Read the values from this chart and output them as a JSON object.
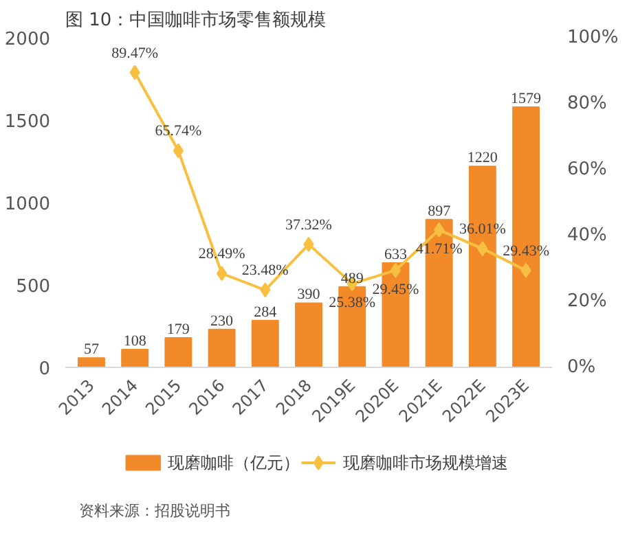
{
  "chart_data": {
    "type": "bar",
    "title": "图 10：中国咖啡市场零售额规模",
    "categories": [
      "2013",
      "2014",
      "2015",
      "2016",
      "2017",
      "2018",
      "2019E",
      "2020E",
      "2021E",
      "2022E",
      "2023E"
    ],
    "series": [
      {
        "name": "现磨咖啡（亿元）",
        "color": "#f28a2a",
        "values": [
          57,
          108,
          179,
          230,
          284,
          390,
          489,
          633,
          897,
          1220,
          1579
        ],
        "value_labels": [
          "57",
          "108",
          "179",
          "230",
          "284",
          "390",
          "489",
          "633",
          "897",
          "1220",
          "1579"
        ]
      },
      {
        "name": "现磨咖啡市场规模增速",
        "type": "line",
        "axis": "y2",
        "color": "#f7c040",
        "marker": "diamond",
        "values": [
          null,
          89.47,
          65.74,
          28.49,
          23.48,
          37.32,
          25.38,
          29.45,
          41.71,
          36.01,
          29.43
        ],
        "value_labels": [
          null,
          "89.47%",
          "65.74%",
          "28.49%",
          "23.48%",
          "37.32%",
          "25.38%",
          "29.45%",
          "41.71%",
          "36.01%",
          "29.43%"
        ]
      }
    ],
    "ylim": [
      0,
      2000
    ],
    "yticks": [
      0,
      500,
      1000,
      1500,
      2000
    ],
    "y2lim": [
      0,
      100
    ],
    "y2ticks": [
      {
        "value": 0,
        "label": "0%"
      },
      {
        "value": 20,
        "label": "20%"
      },
      {
        "value": 40,
        "label": "40%"
      },
      {
        "value": 60,
        "label": "60%"
      },
      {
        "value": 80,
        "label": "80%"
      },
      {
        "value": 100,
        "label": "100%"
      }
    ],
    "legend": "bottom",
    "grid": false,
    "annotations": [
      "资料来源：招股说明书"
    ]
  }
}
